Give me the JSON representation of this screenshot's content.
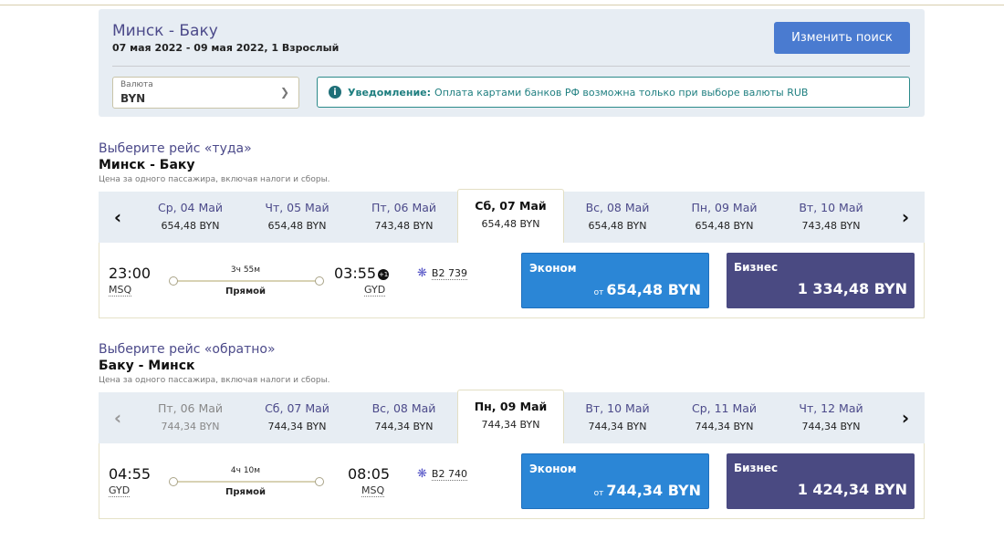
{
  "header": {
    "title": "Минск - Баку",
    "subtitle": "07 мая 2022 - 09 мая 2022, 1 Взрослый",
    "change_search": "Изменить поиск",
    "currency_label": "Валюта",
    "currency_value": "BYN",
    "notice_label": "Уведомление:",
    "notice_text": "Оплата картами банков РФ возможна только при выборе валюты RUB"
  },
  "outbound": {
    "heading": "Выберите рейс «туда»",
    "route": "Минск - Баку",
    "note": "Цена за одного пассажира, включая налоги и сборы.",
    "dates": [
      {
        "d": "Ср, 04 Май",
        "p": "654,48 BYN"
      },
      {
        "d": "Чт, 05 Май",
        "p": "654,48 BYN"
      },
      {
        "d": "Пт, 06 Май",
        "p": "743,48 BYN"
      },
      {
        "d": "Сб, 07 Май",
        "p": "654,48 BYN"
      },
      {
        "d": "Вс, 08 Май",
        "p": "654,48 BYN"
      },
      {
        "d": "Пн, 09 Май",
        "p": "654,48 BYN"
      },
      {
        "d": "Вт, 10 Май",
        "p": "743,48 BYN"
      }
    ],
    "active_index": 3,
    "prev_disabled": false,
    "disabled_index": -1,
    "flight": {
      "dep_time": "23:00",
      "dep_airport": "MSQ",
      "duration": "3ч 55м",
      "type": "Прямой",
      "arr_time": "03:55",
      "day_offset": "+1",
      "arr_airport": "GYD",
      "number": "B2 739"
    },
    "economy": {
      "label": "Эконом",
      "from": "от",
      "price": "654,48 BYN"
    },
    "business": {
      "label": "Бизнес",
      "price": "1 334,48 BYN"
    }
  },
  "inbound": {
    "heading": "Выберите рейс «обратно»",
    "route": "Баку - Минск",
    "note": "Цена за одного пассажира, включая налоги и сборы.",
    "dates": [
      {
        "d": "Пт, 06 Май",
        "p": "744,34 BYN"
      },
      {
        "d": "Сб, 07 Май",
        "p": "744,34 BYN"
      },
      {
        "d": "Вс, 08 Май",
        "p": "744,34 BYN"
      },
      {
        "d": "Пн, 09 Май",
        "p": "744,34 BYN"
      },
      {
        "d": "Вт, 10 Май",
        "p": "744,34 BYN"
      },
      {
        "d": "Ср, 11 Май",
        "p": "744,34 BYN"
      },
      {
        "d": "Чт, 12 Май",
        "p": "744,34 BYN"
      }
    ],
    "active_index": 3,
    "prev_disabled": true,
    "disabled_index": 0,
    "flight": {
      "dep_time": "04:55",
      "dep_airport": "GYD",
      "duration": "4ч 10м",
      "type": "Прямой",
      "arr_time": "08:05",
      "day_offset": null,
      "arr_airport": "MSQ",
      "number": "B2 740"
    },
    "economy": {
      "label": "Эконом",
      "from": "от",
      "price": "744,34 BYN"
    },
    "business": {
      "label": "Бизнес",
      "price": "1 424,34 BYN"
    }
  },
  "colors": {
    "accent": "#4c4a8a",
    "economy": "#2b86d6",
    "business": "#4a4a82",
    "button": "#4a7bd0",
    "notice": "#2b8a8a"
  }
}
